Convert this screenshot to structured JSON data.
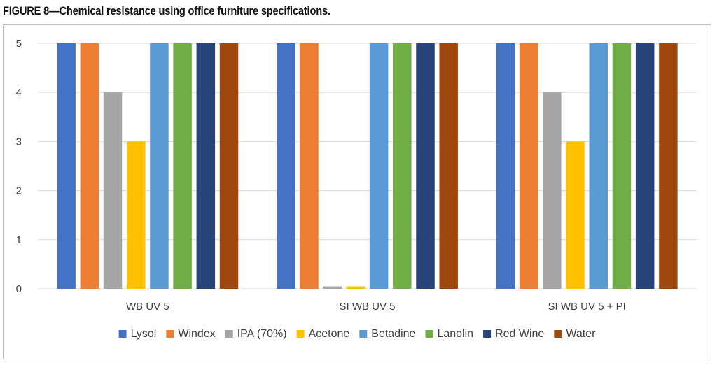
{
  "figure": {
    "title": "FIGURE 8—Chemical resistance using office furniture specifications."
  },
  "chart_data": {
    "type": "bar",
    "title": "FIGURE 8—Chemical resistance using office furniture specifications.",
    "categories": [
      "WB UV 5",
      "SI WB UV 5",
      "SI WB UV 5 + PI"
    ],
    "ylim": [
      0,
      5
    ],
    "yticks": [
      "0",
      "1",
      "2",
      "3",
      "4",
      "5"
    ],
    "grid": true,
    "legend_position": "bottom",
    "series": [
      {
        "name": "Lysol",
        "color": "#4472C4",
        "values": [
          5,
          5,
          5
        ]
      },
      {
        "name": "Windex",
        "color": "#ED7D31",
        "values": [
          5,
          5,
          5
        ]
      },
      {
        "name": "IPA (70%)",
        "color": "#A5A5A5",
        "values": [
          4,
          0.05,
          4
        ]
      },
      {
        "name": "Acetone",
        "color": "#FFC000",
        "values": [
          3,
          0.05,
          3
        ]
      },
      {
        "name": "Betadine",
        "color": "#5B9BD5",
        "values": [
          5,
          5,
          5
        ]
      },
      {
        "name": "Lanolin",
        "color": "#70AD47",
        "values": [
          5,
          5,
          5
        ]
      },
      {
        "name": "Red Wine",
        "color": "#264478",
        "values": [
          5,
          5,
          5
        ]
      },
      {
        "name": "Water",
        "color": "#9E480E",
        "values": [
          5,
          5,
          5
        ]
      }
    ]
  }
}
